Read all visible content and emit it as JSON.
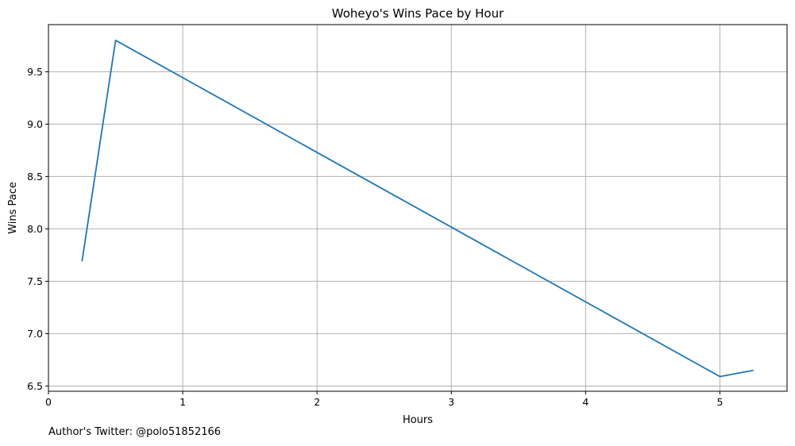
{
  "chart_data": {
    "type": "line",
    "title": "Woheyo's Wins Pace by Hour",
    "xlabel": "Hours",
    "ylabel": "Wins Pace",
    "xlim": [
      0,
      5.5
    ],
    "ylim": [
      6.45,
      9.95
    ],
    "xticks": [
      0,
      1,
      2,
      3,
      4,
      5
    ],
    "yticks": [
      6.5,
      7.0,
      7.5,
      8.0,
      8.5,
      9.0,
      9.5
    ],
    "ytick_labels": [
      "6.5",
      "7.0",
      "7.5",
      "8.0",
      "8.5",
      "9.0",
      "9.5"
    ],
    "grid": true,
    "series": [
      {
        "color": "#1f77b4",
        "x": [
          0.25,
          0.5,
          5.0,
          5.25
        ],
        "y": [
          7.69,
          9.8,
          6.59,
          6.65
        ]
      }
    ]
  },
  "footnote": "Author's Twitter: @polo51852166"
}
